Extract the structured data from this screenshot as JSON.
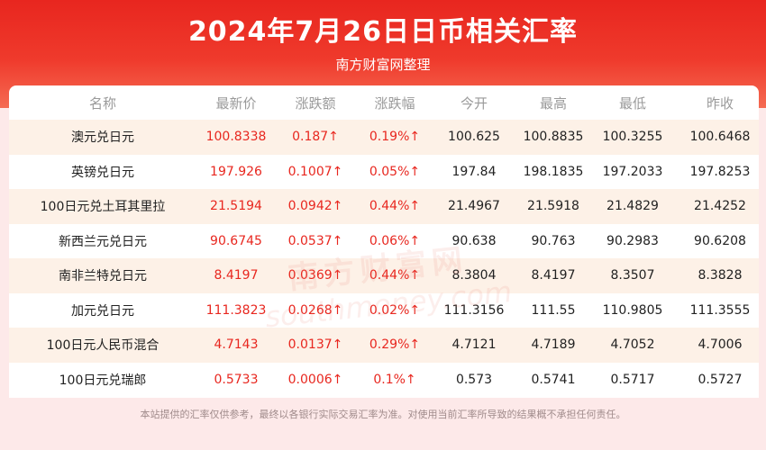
{
  "header": {
    "title": "2024年7月26日日币相关汇率",
    "subtitle": "南方财富网整理"
  },
  "table": {
    "columns": [
      "名称",
      "最新价",
      "涨跌额",
      "涨跌幅",
      "今开",
      "最高",
      "最低",
      "昨收"
    ],
    "rows": [
      [
        "澳元兑日元",
        "100.8338",
        "0.187↑",
        "0.19%↑",
        "100.625",
        "100.8835",
        "100.3255",
        "100.6468"
      ],
      [
        "英镑兑日元",
        "197.926",
        "0.1007↑",
        "0.05%↑",
        "197.84",
        "198.1835",
        "197.2033",
        "197.8253"
      ],
      [
        "100日元兑土耳其里拉",
        "21.5194",
        "0.0942↑",
        "0.44%↑",
        "21.4967",
        "21.5918",
        "21.4829",
        "21.4252"
      ],
      [
        "新西兰元兑日元",
        "90.6745",
        "0.0537↑",
        "0.06%↑",
        "90.638",
        "90.763",
        "90.2983",
        "90.6208"
      ],
      [
        "南非兰特兑日元",
        "8.4197",
        "0.0369↑",
        "0.44%↑",
        "8.3804",
        "8.4197",
        "8.3507",
        "8.3828"
      ],
      [
        "加元兑日元",
        "111.3823",
        "0.0268↑",
        "0.02%↑",
        "111.3156",
        "111.55",
        "110.9805",
        "111.3555"
      ],
      [
        "100日元人民币混合",
        "4.7143",
        "0.0137↑",
        "0.29%↑",
        "4.7121",
        "4.7189",
        "4.7052",
        "4.7006"
      ],
      [
        "100日元兑瑞郎",
        "0.5733",
        "0.0006↑",
        "0.1%↑",
        "0.573",
        "0.5741",
        "0.5717",
        "0.5727"
      ]
    ]
  },
  "watermark": {
    "cn": "南方财富网",
    "en": "southmoney.com"
  },
  "footer": {
    "disclaimer": "本站提供的汇率仅供参考，最终以各银行实际交易汇率为准。对使用当前汇率所导致的结果概不承担任何责任。"
  },
  "colors": {
    "up": "#e8271f",
    "header_red": "#e8261f",
    "row_stripe": "#fdf1e7"
  }
}
